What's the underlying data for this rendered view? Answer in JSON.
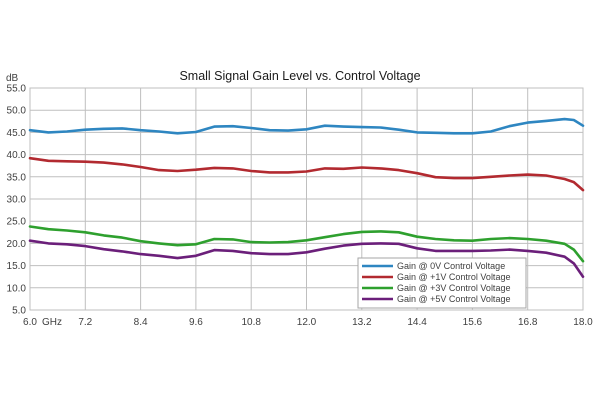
{
  "chart_data": {
    "type": "line",
    "title": "Small Signal Gain Level vs. Control Voltage",
    "xlabel": "GHz",
    "ylabel": "dB",
    "xlim": [
      6.0,
      18.0
    ],
    "ylim": [
      5.0,
      55.0
    ],
    "x_ticks": [
      6.0,
      7.2,
      8.4,
      9.6,
      10.8,
      12.0,
      13.2,
      14.4,
      15.6,
      16.8,
      18.0
    ],
    "x_tick_labels": [
      "6.0",
      "7.2",
      "8.4",
      "9.6",
      "10.8",
      "12.0",
      "13.2",
      "14.4",
      "15.6",
      "16.8",
      "18.0"
    ],
    "y_ticks": [
      5.0,
      10.0,
      15.0,
      20.0,
      25.0,
      30.0,
      35.0,
      40.0,
      45.0,
      50.0,
      55.0
    ],
    "y_tick_labels": [
      "5.0",
      "10.0",
      "15.0",
      "20.0",
      "25.0",
      "30.0",
      "35.0",
      "40.0",
      "45.0",
      "50.0",
      "55.0"
    ],
    "grid": true,
    "legend_position": "bottom-right",
    "series": [
      {
        "name": "Gain @ 0V Control Voltage",
        "color": "#2e86c1",
        "x": [
          6.0,
          6.4,
          6.8,
          7.2,
          7.6,
          8.0,
          8.4,
          8.8,
          9.2,
          9.6,
          10.0,
          10.4,
          10.8,
          11.2,
          11.6,
          12.0,
          12.4,
          12.8,
          13.2,
          13.6,
          14.0,
          14.4,
          14.8,
          15.2,
          15.6,
          16.0,
          16.4,
          16.8,
          17.2,
          17.6,
          17.8,
          18.0
        ],
        "y": [
          45.5,
          45.0,
          45.2,
          45.6,
          45.8,
          45.9,
          45.5,
          45.2,
          44.8,
          45.1,
          46.3,
          46.4,
          46.0,
          45.5,
          45.4,
          45.7,
          46.5,
          46.3,
          46.2,
          46.1,
          45.6,
          45.0,
          44.9,
          44.8,
          44.8,
          45.2,
          46.4,
          47.2,
          47.6,
          48.0,
          47.8,
          46.5
        ]
      },
      {
        "name": "Gain @ +1V Control Voltage",
        "color": "#b22a30",
        "x": [
          6.0,
          6.4,
          6.8,
          7.2,
          7.6,
          8.0,
          8.4,
          8.8,
          9.2,
          9.6,
          10.0,
          10.4,
          10.8,
          11.2,
          11.6,
          12.0,
          12.4,
          12.8,
          13.2,
          13.6,
          14.0,
          14.4,
          14.8,
          15.2,
          15.6,
          16.0,
          16.4,
          16.8,
          17.2,
          17.6,
          17.8,
          18.0
        ],
        "y": [
          39.2,
          38.6,
          38.5,
          38.4,
          38.2,
          37.8,
          37.2,
          36.5,
          36.3,
          36.6,
          37.0,
          36.9,
          36.3,
          36.0,
          36.0,
          36.2,
          36.9,
          36.8,
          37.1,
          36.9,
          36.5,
          35.8,
          34.9,
          34.7,
          34.7,
          35.0,
          35.3,
          35.5,
          35.3,
          34.5,
          33.8,
          32.0
        ]
      },
      {
        "name": "Gain @ +3V Control Voltage",
        "color": "#2ea02e",
        "x": [
          6.0,
          6.4,
          6.8,
          7.2,
          7.6,
          8.0,
          8.4,
          8.8,
          9.2,
          9.6,
          10.0,
          10.4,
          10.8,
          11.2,
          11.6,
          12.0,
          12.4,
          12.8,
          13.2,
          13.6,
          14.0,
          14.4,
          14.8,
          15.2,
          15.6,
          16.0,
          16.4,
          16.8,
          17.2,
          17.6,
          17.8,
          18.0
        ],
        "y": [
          23.8,
          23.2,
          22.9,
          22.5,
          21.8,
          21.3,
          20.5,
          20.0,
          19.6,
          19.8,
          21.0,
          20.9,
          20.3,
          20.2,
          20.3,
          20.7,
          21.4,
          22.1,
          22.6,
          22.7,
          22.5,
          21.5,
          21.0,
          20.7,
          20.6,
          21.0,
          21.2,
          21.0,
          20.6,
          19.9,
          18.6,
          16.0
        ]
      },
      {
        "name": "Gain @ +5V Control Voltage",
        "color": "#6b1f7a",
        "x": [
          6.0,
          6.4,
          6.8,
          7.2,
          7.6,
          8.0,
          8.4,
          8.8,
          9.2,
          9.6,
          10.0,
          10.4,
          10.8,
          11.2,
          11.6,
          12.0,
          12.4,
          12.8,
          13.2,
          13.6,
          14.0,
          14.4,
          14.8,
          15.2,
          15.6,
          16.0,
          16.4,
          16.8,
          17.2,
          17.6,
          17.8,
          18.0
        ],
        "y": [
          20.6,
          20.0,
          19.8,
          19.4,
          18.7,
          18.2,
          17.6,
          17.2,
          16.7,
          17.2,
          18.5,
          18.3,
          17.8,
          17.6,
          17.6,
          18.0,
          18.8,
          19.5,
          19.9,
          20.0,
          19.9,
          18.9,
          18.3,
          18.3,
          18.3,
          18.4,
          18.6,
          18.3,
          17.9,
          17.0,
          15.5,
          12.5
        ]
      }
    ]
  }
}
